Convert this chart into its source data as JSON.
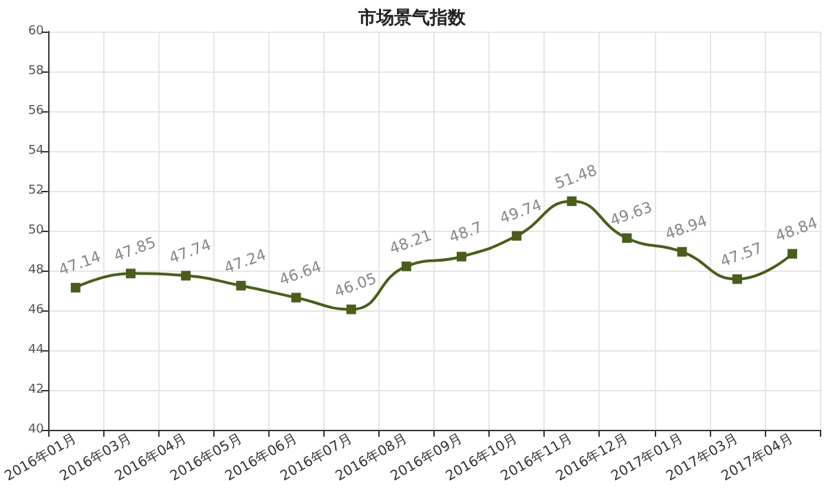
{
  "chart_data": {
    "type": "line",
    "title": "市场景气指数",
    "categories": [
      "2016年01月",
      "2016年03月",
      "2016年04月",
      "2016年05月",
      "2016年06月",
      "2016年07月",
      "2016年08月",
      "2016年09月",
      "2016年10月",
      "2016年11月",
      "2016年12月",
      "2017年01月",
      "2017年03月",
      "2017年04月"
    ],
    "series": [
      {
        "color": "#4a5e1c",
        "values": [
          47.14,
          47.85,
          47.74,
          47.24,
          46.64,
          46.05,
          48.21,
          48.7,
          49.74,
          51.48,
          49.63,
          48.94,
          47.57,
          48.84
        ]
      }
    ],
    "ylim": [
      40,
      60
    ],
    "yticks": [
      40,
      42,
      44,
      46,
      48,
      50,
      52,
      54,
      56,
      58,
      60
    ],
    "grid": true,
    "marker": "square",
    "line_style": "solid",
    "data_labels": true
  }
}
